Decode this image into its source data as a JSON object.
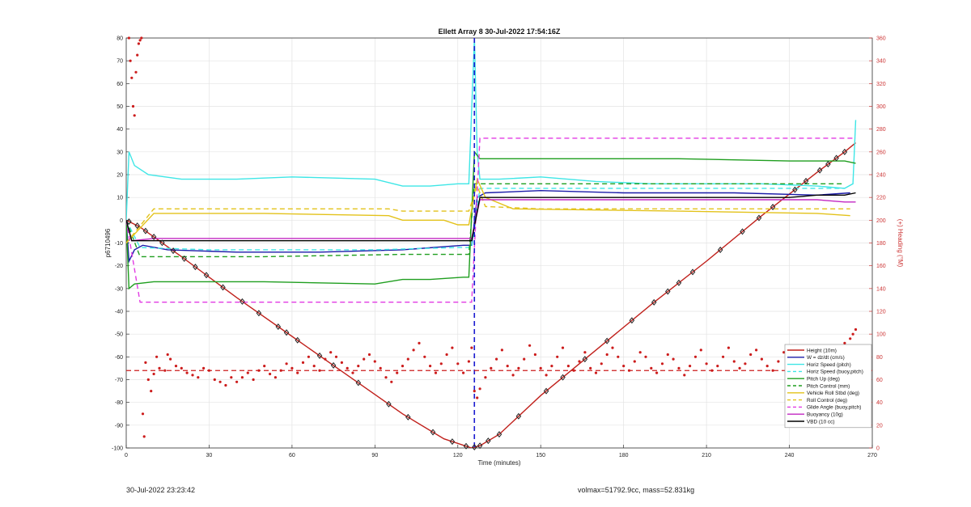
{
  "chart_data": {
    "type": "line",
    "title": "Ellett Array 8 30-Jul-2022 17:54:16Z",
    "xlabel": "Time (minutes)",
    "ylabel": "p6710496",
    "y2label": "(+) Heading (°M)",
    "xlim": [
      0,
      270
    ],
    "ylim": [
      -100,
      80
    ],
    "y2lim": [
      0,
      360
    ],
    "xticks": [
      0,
      30,
      60,
      90,
      120,
      150,
      180,
      210,
      240,
      270
    ],
    "yticks": [
      -100,
      -90,
      -80,
      -70,
      -60,
      -50,
      -40,
      -30,
      -20,
      -10,
      0,
      10,
      20,
      30,
      40,
      50,
      60,
      70,
      80
    ],
    "y2ticks": [
      0,
      20,
      40,
      60,
      80,
      100,
      120,
      140,
      160,
      180,
      200,
      220,
      240,
      260,
      280,
      300,
      320,
      340,
      360
    ],
    "grid": true,
    "legend_position": "bottom-right",
    "colors": {
      "depth": "#c0201b",
      "w": "#1a1aa8",
      "horiz": "#3ee6e6",
      "pitch": "#1f9e1f",
      "roll": "#e3c21a",
      "glide": "#e23be3",
      "buoy": "#c227c2",
      "vbd": "#000000",
      "heading": "#cc1c1c",
      "dive_line": "#1a1ad0",
      "markers": "#222222"
    },
    "series": [
      {
        "name": "Height (10m)",
        "style": "solid",
        "color": "#c0201b",
        "x": [
          0,
          5,
          20,
          40,
          60,
          80,
          100,
          115,
          125,
          128,
          135,
          150,
          170,
          190,
          210,
          230,
          250,
          260,
          264
        ],
        "y": [
          0,
          -3,
          -16,
          -34,
          -51,
          -68,
          -85,
          -96,
          -100,
          -99,
          -94,
          -77,
          -57,
          -37,
          -18,
          2,
          21,
          30,
          34
        ]
      },
      {
        "name": "W = dz/dt (cm/s)",
        "style": "solid",
        "color": "#1a1aa8",
        "x": [
          0,
          1,
          3,
          6,
          15,
          40,
          70,
          100,
          122,
          125,
          127,
          130,
          150,
          180,
          200,
          220,
          250,
          262
        ],
        "y": [
          0,
          -18,
          -13,
          -11,
          -13,
          -14,
          -14,
          -13,
          -11,
          -11,
          10,
          12,
          13,
          12,
          12,
          12,
          11,
          12
        ]
      },
      {
        "name": "Horiz Speed (pitch)",
        "style": "solid",
        "color": "#3ee6e6",
        "x": [
          0,
          1,
          3,
          8,
          20,
          40,
          60,
          90,
          100,
          110,
          120,
          124,
          126,
          127,
          128,
          135,
          150,
          170,
          190,
          210,
          230,
          250,
          260,
          263,
          264
        ],
        "y": [
          0,
          30,
          24,
          20,
          18,
          18,
          19,
          18,
          15,
          15,
          16,
          16,
          80,
          30,
          18,
          18,
          19,
          17,
          16,
          16,
          16,
          15,
          14,
          16,
          44
        ]
      },
      {
        "name": "Horiz Speed (buoy,pitch)",
        "style": "dashed",
        "color": "#3ee6e6",
        "x": [
          0,
          5,
          30,
          60,
          90,
          120,
          125,
          128,
          150,
          180,
          210,
          240,
          260
        ],
        "y": [
          0,
          -12,
          -13,
          -13,
          -13,
          -12,
          -12,
          14,
          14,
          14,
          14,
          14,
          14
        ]
      },
      {
        "name": "Pitch Up (deg)",
        "style": "solid",
        "color": "#1f9e1f",
        "x": [
          0,
          1,
          3,
          10,
          20,
          50,
          90,
          100,
          110,
          122,
          124,
          126,
          128,
          140,
          160,
          200,
          240,
          260,
          264
        ],
        "y": [
          0,
          -30,
          -28,
          -27,
          -27,
          -27,
          -28,
          -26,
          -26,
          -25,
          -25,
          30,
          27,
          27,
          27,
          27,
          26,
          26,
          25
        ]
      },
      {
        "name": "Pitch Control (mm)",
        "style": "dashed",
        "color": "#1f9e1f",
        "x": [
          0,
          5,
          50,
          100,
          124,
          126,
          128,
          200,
          260
        ],
        "y": [
          0,
          -16,
          -16,
          -15,
          -15,
          16,
          16,
          16,
          16
        ]
      },
      {
        "name": "Vehicle Roll Stbd (deg)",
        "style": "solid",
        "color": "#e3c21a",
        "x": [
          0,
          10,
          50,
          95,
          100,
          115,
          120,
          124,
          127,
          130,
          140,
          200,
          250,
          262
        ],
        "y": [
          -10,
          3,
          3,
          2,
          0,
          0,
          -2,
          -2,
          18,
          10,
          5,
          4,
          3,
          2
        ]
      },
      {
        "name": "Roll Control (deg)",
        "style": "dashed",
        "color": "#e3c21a",
        "x": [
          0,
          10,
          50,
          95,
          100,
          124,
          127,
          130,
          150,
          200,
          250,
          262
        ],
        "y": [
          -10,
          5,
          5,
          5,
          4,
          4,
          15,
          6,
          5,
          5,
          5,
          5
        ]
      },
      {
        "name": "Glide Angle (buoy,pitch)",
        "style": "dashed",
        "color": "#e23be3",
        "x": [
          0,
          5,
          30,
          60,
          90,
          120,
          125,
          128,
          150,
          180,
          210,
          240,
          260,
          264
        ],
        "y": [
          0,
          -36,
          -36,
          -36,
          -36,
          -36,
          -36,
          36,
          36,
          36,
          36,
          36,
          36,
          36
        ]
      },
      {
        "name": "Buoyancy (10g)",
        "style": "solid",
        "color": "#c227c2",
        "x": [
          0,
          2,
          10,
          60,
          120,
          125,
          128,
          150,
          200,
          250,
          260,
          264
        ],
        "y": [
          0,
          -9,
          -8,
          -8,
          -8,
          -8,
          9,
          9,
          9,
          9,
          8,
          8
        ]
      },
      {
        "name": "VBD (10 cc)",
        "style": "solid",
        "color": "#000000",
        "x": [
          0,
          2,
          10,
          60,
          120,
          125,
          128,
          150,
          200,
          240,
          250,
          260,
          264
        ],
        "y": [
          0,
          -9,
          -9,
          -9,
          -9,
          -9,
          10,
          10,
          10,
          10,
          11,
          11,
          12
        ]
      }
    ],
    "heading_points": [
      [
        1,
        360
      ],
      [
        1.5,
        340
      ],
      [
        2,
        325
      ],
      [
        2.5,
        300
      ],
      [
        3,
        292
      ],
      [
        3.5,
        330
      ],
      [
        4,
        345
      ],
      [
        4.5,
        355
      ],
      [
        5,
        358
      ],
      [
        5.5,
        360
      ],
      [
        6,
        30
      ],
      [
        6.5,
        10
      ],
      [
        7,
        75
      ],
      [
        8,
        60
      ],
      [
        9,
        50
      ],
      [
        10,
        65
      ],
      [
        11,
        80
      ],
      [
        12,
        70
      ],
      [
        14,
        68
      ],
      [
        15,
        82
      ],
      [
        16,
        78
      ],
      [
        18,
        72
      ],
      [
        20,
        70
      ],
      [
        22,
        66
      ],
      [
        24,
        64
      ],
      [
        26,
        62
      ],
      [
        28,
        70
      ],
      [
        30,
        68
      ],
      [
        32,
        60
      ],
      [
        34,
        58
      ],
      [
        36,
        55
      ],
      [
        38,
        62
      ],
      [
        40,
        58
      ],
      [
        42,
        62
      ],
      [
        44,
        66
      ],
      [
        46,
        60
      ],
      [
        48,
        68
      ],
      [
        50,
        72
      ],
      [
        52,
        65
      ],
      [
        54,
        62
      ],
      [
        56,
        68
      ],
      [
        58,
        74
      ],
      [
        60,
        70
      ],
      [
        62,
        66
      ],
      [
        64,
        75
      ],
      [
        66,
        80
      ],
      [
        68,
        72
      ],
      [
        70,
        68
      ],
      [
        72,
        78
      ],
      [
        74,
        84
      ],
      [
        76,
        80
      ],
      [
        78,
        75
      ],
      [
        80,
        70
      ],
      [
        82,
        66
      ],
      [
        84,
        72
      ],
      [
        86,
        78
      ],
      [
        88,
        82
      ],
      [
        90,
        76
      ],
      [
        92,
        70
      ],
      [
        94,
        62
      ],
      [
        96,
        58
      ],
      [
        98,
        66
      ],
      [
        100,
        72
      ],
      [
        102,
        78
      ],
      [
        104,
        86
      ],
      [
        106,
        92
      ],
      [
        108,
        80
      ],
      [
        110,
        72
      ],
      [
        112,
        66
      ],
      [
        114,
        74
      ],
      [
        116,
        82
      ],
      [
        118,
        88
      ],
      [
        120,
        74
      ],
      [
        122,
        66
      ],
      [
        124,
        76
      ],
      [
        125,
        88
      ],
      [
        126,
        50
      ],
      [
        127,
        44
      ],
      [
        128,
        52
      ],
      [
        130,
        62
      ],
      [
        132,
        70
      ],
      [
        134,
        78
      ],
      [
        136,
        86
      ],
      [
        138,
        72
      ],
      [
        140,
        64
      ],
      [
        142,
        70
      ],
      [
        144,
        78
      ],
      [
        146,
        90
      ],
      [
        148,
        82
      ],
      [
        150,
        70
      ],
      [
        152,
        64
      ],
      [
        154,
        72
      ],
      [
        156,
        80
      ],
      [
        158,
        88
      ],
      [
        160,
        72
      ],
      [
        162,
        68
      ],
      [
        164,
        76
      ],
      [
        166,
        84
      ],
      [
        168,
        70
      ],
      [
        170,
        66
      ],
      [
        172,
        74
      ],
      [
        174,
        82
      ],
      [
        176,
        88
      ],
      [
        178,
        80
      ],
      [
        180,
        72
      ],
      [
        182,
        68
      ],
      [
        184,
        76
      ],
      [
        186,
        84
      ],
      [
        188,
        80
      ],
      [
        190,
        70
      ],
      [
        192,
        66
      ],
      [
        194,
        74
      ],
      [
        196,
        82
      ],
      [
        198,
        78
      ],
      [
        200,
        70
      ],
      [
        202,
        64
      ],
      [
        204,
        72
      ],
      [
        206,
        80
      ],
      [
        208,
        86
      ],
      [
        210,
        74
      ],
      [
        212,
        68
      ],
      [
        214,
        72
      ],
      [
        216,
        80
      ],
      [
        218,
        88
      ],
      [
        220,
        76
      ],
      [
        222,
        70
      ],
      [
        224,
        74
      ],
      [
        226,
        82
      ],
      [
        228,
        86
      ],
      [
        230,
        78
      ],
      [
        232,
        72
      ],
      [
        234,
        68
      ],
      [
        236,
        76
      ],
      [
        238,
        84
      ],
      [
        240,
        80
      ],
      [
        242,
        72
      ],
      [
        244,
        70
      ],
      [
        246,
        78
      ],
      [
        248,
        86
      ],
      [
        250,
        82
      ],
      [
        252,
        76
      ],
      [
        254,
        72
      ],
      [
        256,
        80
      ],
      [
        258,
        88
      ],
      [
        260,
        92
      ],
      [
        262,
        96
      ],
      [
        263,
        100
      ],
      [
        264,
        104
      ]
    ],
    "heading_mean": 68,
    "dive_line_x": 126,
    "depth_markers_x": [
      1,
      4,
      7,
      10,
      13,
      17,
      21,
      25,
      29,
      35,
      42,
      48,
      55,
      58,
      62,
      70,
      75,
      84,
      95,
      102,
      111,
      118,
      123,
      126,
      128,
      131,
      135,
      142,
      152,
      158,
      166,
      174,
      183,
      191,
      196,
      200,
      205,
      215,
      223,
      229,
      234,
      242,
      246,
      251,
      254,
      257,
      260
    ]
  },
  "footer": {
    "timestamp": "30-Jul-2022 23:23:42",
    "summary": "volmax=51792.9cc, mass=52.831kg"
  }
}
